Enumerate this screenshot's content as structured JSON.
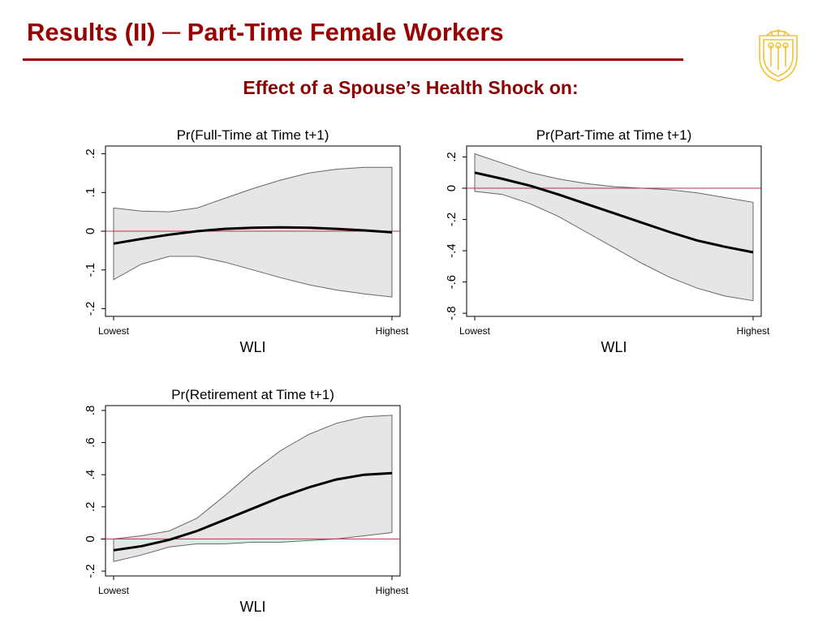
{
  "slide": {
    "title": "Results (II) ─ Part-Time Female Workers",
    "subtitle": "Effect of a Spouse’s Health Shock on:"
  },
  "colors": {
    "title": "#990000",
    "band_fill": "#e6e6e6",
    "band_edge": "#666666",
    "line": "#000000",
    "zero_line": "#c0304a",
    "logo": "#f1c232"
  },
  "logo": {
    "name": "shield-logo"
  },
  "chart_data": [
    {
      "type": "line",
      "title": "Pr(Full-Time at Time t+1)",
      "xlabel": "WLI",
      "x_tick_labels": [
        "Lowest",
        "Highest"
      ],
      "ylabel": "",
      "ylim": [
        -0.22,
        0.22
      ],
      "yticks": [
        -0.2,
        -0.1,
        0,
        0.1,
        0.2
      ],
      "ytick_labels": [
        "-.2",
        "-.1",
        "0",
        ".1",
        ".2"
      ],
      "zero_line": true,
      "x": [
        0,
        0.1,
        0.2,
        0.3,
        0.4,
        0.5,
        0.6,
        0.7,
        0.8,
        0.9,
        1
      ],
      "series": [
        {
          "role": "estimate",
          "values": [
            -0.032,
            -0.02,
            -0.009,
            0.0,
            0.006,
            0.009,
            0.01,
            0.009,
            0.006,
            0.002,
            -0.003
          ]
        },
        {
          "role": "upper",
          "values": [
            0.06,
            0.052,
            0.05,
            0.06,
            0.085,
            0.11,
            0.132,
            0.15,
            0.16,
            0.165,
            0.165
          ]
        },
        {
          "role": "lower",
          "values": [
            -0.125,
            -0.085,
            -0.065,
            -0.065,
            -0.08,
            -0.1,
            -0.12,
            -0.138,
            -0.152,
            -0.162,
            -0.17
          ]
        }
      ]
    },
    {
      "type": "line",
      "title": "Pr(Part-Time at Time t+1)",
      "xlabel": "WLI",
      "x_tick_labels": [
        "Lowest",
        "Highest"
      ],
      "ylabel": "",
      "ylim": [
        -0.82,
        0.27
      ],
      "yticks": [
        -0.8,
        -0.6,
        -0.4,
        -0.2,
        0,
        0.2
      ],
      "ytick_labels": [
        "-.8",
        "-.6",
        "-.4",
        "-.2",
        "0",
        ".2"
      ],
      "zero_line": true,
      "x": [
        0,
        0.1,
        0.2,
        0.3,
        0.4,
        0.5,
        0.6,
        0.7,
        0.8,
        0.9,
        1
      ],
      "series": [
        {
          "role": "estimate",
          "values": [
            0.1,
            0.06,
            0.015,
            -0.04,
            -0.1,
            -0.16,
            -0.22,
            -0.28,
            -0.335,
            -0.375,
            -0.41
          ]
        },
        {
          "role": "upper",
          "values": [
            0.22,
            0.16,
            0.1,
            0.06,
            0.03,
            0.01,
            0.0,
            -0.01,
            -0.03,
            -0.06,
            -0.09
          ]
        },
        {
          "role": "lower",
          "values": [
            -0.02,
            -0.04,
            -0.1,
            -0.18,
            -0.28,
            -0.38,
            -0.48,
            -0.57,
            -0.64,
            -0.69,
            -0.72
          ]
        }
      ]
    },
    {
      "type": "line",
      "title": "Pr(Retirement at Time t+1)",
      "xlabel": "WLI",
      "x_tick_labels": [
        "Lowest",
        "Highest"
      ],
      "ylabel": "",
      "ylim": [
        -0.23,
        0.83
      ],
      "yticks": [
        -0.2,
        0,
        0.2,
        0.4,
        0.6,
        0.8
      ],
      "ytick_labels": [
        "-.2",
        "0",
        ".2",
        ".4",
        ".6",
        ".8"
      ],
      "zero_line": true,
      "x": [
        0,
        0.1,
        0.2,
        0.3,
        0.4,
        0.5,
        0.6,
        0.7,
        0.8,
        0.9,
        1
      ],
      "series": [
        {
          "role": "estimate",
          "values": [
            -0.07,
            -0.045,
            -0.005,
            0.05,
            0.12,
            0.19,
            0.26,
            0.32,
            0.37,
            0.4,
            0.41
          ]
        },
        {
          "role": "upper",
          "values": [
            0.0,
            0.02,
            0.05,
            0.13,
            0.27,
            0.42,
            0.55,
            0.65,
            0.72,
            0.76,
            0.77
          ]
        },
        {
          "role": "lower",
          "values": [
            -0.14,
            -0.1,
            -0.05,
            -0.03,
            -0.03,
            -0.02,
            -0.02,
            -0.01,
            0.0,
            0.02,
            0.04
          ]
        }
      ]
    }
  ]
}
